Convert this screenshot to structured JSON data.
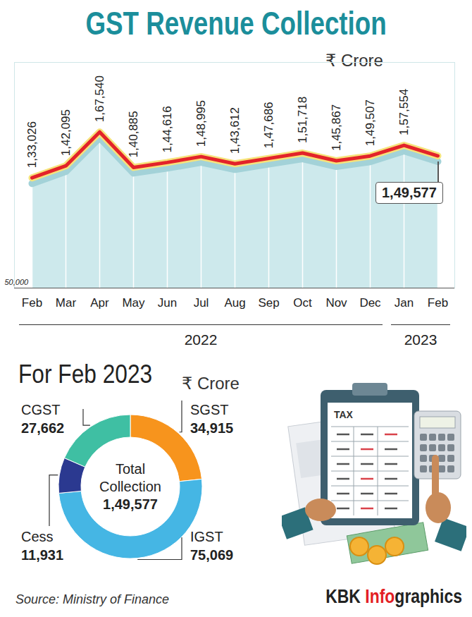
{
  "chart_data": [
    {
      "type": "line",
      "title": "GST Revenue Collection",
      "subtitle": "₹ Crore",
      "categories": [
        "Feb",
        "Mar",
        "Apr",
        "May",
        "Jun",
        "Jul",
        "Aug",
        "Sep",
        "Oct",
        "Nov",
        "Dec",
        "Jan",
        "Feb"
      ],
      "years": [
        "2022",
        "2022",
        "2022",
        "2022",
        "2022",
        "2022",
        "2022",
        "2022",
        "2022",
        "2022",
        "2022",
        "2023",
        "2023"
      ],
      "values": [
        133026,
        142095,
        167540,
        140885,
        144616,
        148995,
        143612,
        147686,
        151718,
        145867,
        149507,
        157554,
        149577
      ],
      "value_labels": [
        "1,33,026",
        "1,42,095",
        "1,67,540",
        "1,40,885",
        "1,44,616",
        "1,48,995",
        "1,43,612",
        "1,47,686",
        "1,51,718",
        "1,45,867",
        "1,49,507",
        "1,57,554",
        "1,49,577"
      ],
      "data_labels": true,
      "color": "#e3232a",
      "ylim": [
        50000,
        220000
      ],
      "yticks": [
        {
          "value": 50000,
          "label": "50,000"
        }
      ]
    },
    {
      "type": "pie",
      "title": "For Feb 2023",
      "subtitle": "₹ Crore",
      "categories": [
        "SGST",
        "IGST",
        "Cess",
        "CGST"
      ],
      "values": [
        34915,
        75069,
        11931,
        27662
      ],
      "value_labels": [
        "34,915",
        "75,069",
        "11,931",
        "27,662"
      ],
      "colors": [
        "#f7941d",
        "#45b6e4",
        "#2b3990",
        "#3fbfa3"
      ],
      "data_labels": true,
      "center_label": "Total Collection",
      "total": 149577,
      "total_label": "1,49,577"
    }
  ],
  "illustration_label": "TAX",
  "source": "Source: Ministry of Finance",
  "credit": [
    "KBK ",
    "Info",
    "graphics"
  ]
}
